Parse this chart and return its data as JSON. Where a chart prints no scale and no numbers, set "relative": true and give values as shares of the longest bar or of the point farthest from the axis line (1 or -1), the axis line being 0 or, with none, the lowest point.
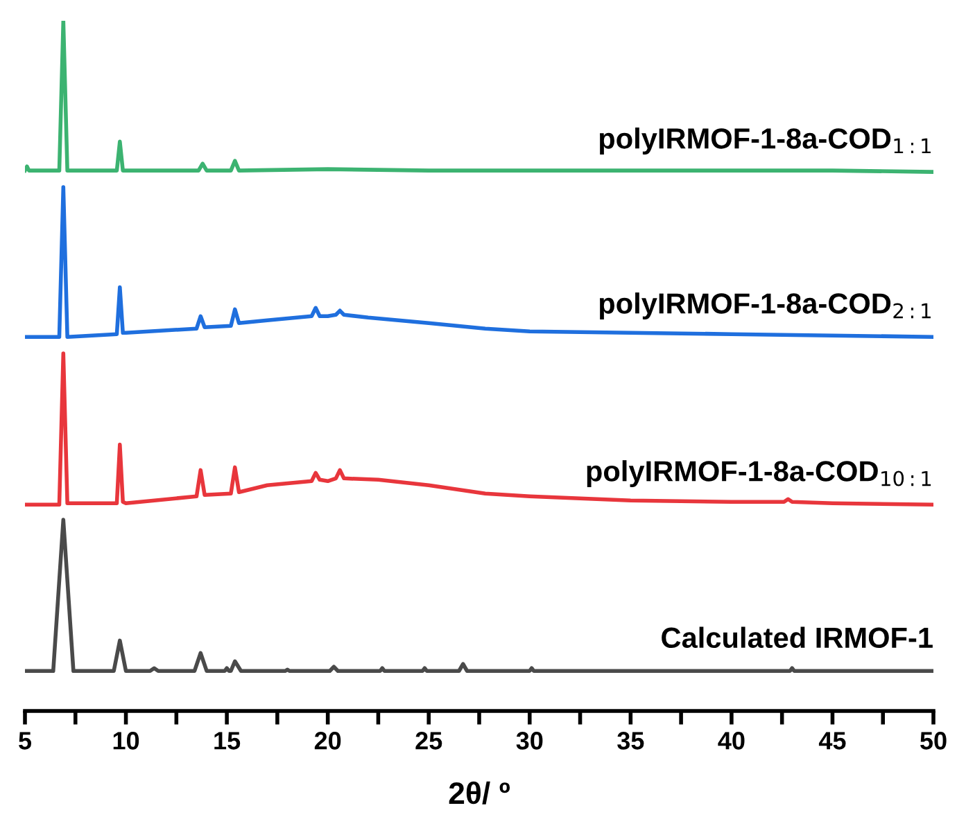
{
  "chart_data": {
    "type": "line",
    "relative": true,
    "xlabel": "2θ/ º",
    "xlim": [
      5,
      50
    ],
    "xticks": [
      5,
      {
        "value": 7.5,
        "label": null
      },
      10,
      {
        "value": 12.5,
        "label": null
      },
      15,
      {
        "value": 17.5,
        "label": null
      },
      20,
      {
        "value": 22.5,
        "label": null
      },
      25,
      {
        "value": 27.5,
        "label": null
      },
      30,
      {
        "value": 32.5,
        "label": null
      },
      35,
      {
        "value": 37.5,
        "label": null
      },
      40,
      {
        "value": 42.5,
        "label": null
      },
      45,
      {
        "value": 47.5,
        "label": null
      },
      50
    ],
    "grid": false,
    "legend": false,
    "marker": "none",
    "line_style": "solid",
    "series": [
      {
        "name": "polyIRMOF-1-8a-COD$_{1:1}$",
        "color": "#3cb371",
        "x": [
          5.0,
          5.1,
          5.2,
          6.7,
          6.9,
          7.1,
          9.55,
          9.7,
          9.85,
          13.6,
          13.8,
          14.0,
          15.2,
          15.4,
          15.6,
          20,
          25,
          30,
          35,
          40,
          45,
          50
        ],
        "values": [
          0.783,
          0.789,
          0.783,
          0.783,
          1.0,
          0.783,
          0.783,
          0.825,
          0.783,
          0.783,
          0.793,
          0.783,
          0.783,
          0.797,
          0.783,
          0.785,
          0.783,
          0.783,
          0.783,
          0.783,
          0.783,
          0.781
        ]
      },
      {
        "name": "polyIRMOF-1-8a-COD$_{2:1}$",
        "color": "#1f6fde",
        "x": [
          5.0,
          6.7,
          6.9,
          7.1,
          9.55,
          9.7,
          9.85,
          10,
          13.5,
          13.7,
          13.9,
          15.2,
          15.4,
          15.6,
          17,
          19.2,
          19.4,
          19.6,
          20,
          20.4,
          20.6,
          20.8,
          22,
          25,
          27.8,
          30,
          35,
          40,
          45,
          50
        ],
        "values": [
          0.542,
          0.542,
          0.759,
          0.542,
          0.546,
          0.614,
          0.548,
          0.548,
          0.554,
          0.572,
          0.556,
          0.558,
          0.582,
          0.562,
          0.566,
          0.572,
          0.584,
          0.572,
          0.572,
          0.574,
          0.58,
          0.574,
          0.57,
          0.562,
          0.554,
          0.55,
          0.548,
          0.546,
          0.544,
          0.542
        ]
      },
      {
        "name": "polyIRMOF-1-8a-COD$_{10:1}$",
        "color": "#e8363c",
        "x": [
          5.0,
          6.7,
          6.9,
          7.1,
          9.55,
          9.7,
          9.85,
          10,
          13.5,
          13.7,
          13.9,
          15.2,
          15.4,
          15.6,
          17,
          19.2,
          19.4,
          19.6,
          20,
          20.4,
          20.6,
          20.8,
          22.5,
          25,
          27.8,
          30,
          35,
          40,
          42.6,
          42.8,
          43.0,
          45,
          50
        ],
        "values": [
          0.299,
          0.299,
          0.518,
          0.301,
          0.301,
          0.386,
          0.303,
          0.301,
          0.311,
          0.349,
          0.313,
          0.315,
          0.353,
          0.317,
          0.327,
          0.333,
          0.345,
          0.335,
          0.333,
          0.337,
          0.349,
          0.337,
          0.335,
          0.327,
          0.315,
          0.311,
          0.305,
          0.303,
          0.303,
          0.307,
          0.303,
          0.301,
          0.299
        ]
      },
      {
        "name": "Calculated IRMOF-1",
        "color": "#4a4a4a",
        "x": [
          5.0,
          6.4,
          6.9,
          7.4,
          9.4,
          9.7,
          10.0,
          11.2,
          11.4,
          11.6,
          13.4,
          13.7,
          14.0,
          14.9,
          15.0,
          15.1,
          15.2,
          15.4,
          15.7,
          17.9,
          18.0,
          18.1,
          20.1,
          20.3,
          20.5,
          22.6,
          22.7,
          22.8,
          24.7,
          24.8,
          24.9,
          26.5,
          26.7,
          26.9,
          30,
          30.1,
          30.2,
          35,
          42.9,
          43.0,
          43.1,
          50
        ],
        "values": [
          0.058,
          0.058,
          0.277,
          0.058,
          0.058,
          0.102,
          0.058,
          0.058,
          0.062,
          0.058,
          0.058,
          0.084,
          0.058,
          0.058,
          0.062,
          0.058,
          0.058,
          0.072,
          0.058,
          0.058,
          0.06,
          0.058,
          0.058,
          0.064,
          0.058,
          0.058,
          0.062,
          0.058,
          0.058,
          0.062,
          0.058,
          0.058,
          0.068,
          0.058,
          0.058,
          0.062,
          0.058,
          0.058,
          0.058,
          0.062,
          0.058,
          0.058
        ]
      }
    ]
  }
}
